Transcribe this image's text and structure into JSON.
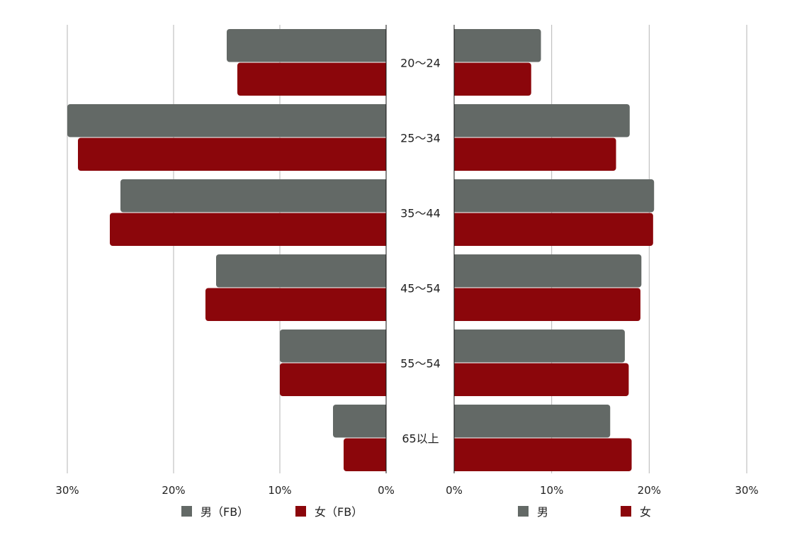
{
  "chart_data": {
    "type": "bar",
    "orientation": "horizontal",
    "layout": "butterfly",
    "categories": [
      "20〜24",
      "25〜34",
      "35〜44",
      "45〜54",
      "55〜54",
      "65以上"
    ],
    "colors": {
      "male": "#636966",
      "female": "#8b060b"
    },
    "grid": true,
    "legend_position": "bottom",
    "panels": [
      {
        "side": "left",
        "direction": "reversed",
        "xlim": [
          0,
          30
        ],
        "ticks": [
          "0%",
          "10%",
          "20%",
          "30%"
        ],
        "series": [
          {
            "name": "男（FB）",
            "color": "#636966",
            "values": [
              15,
              30,
              25,
              16,
              10,
              5
            ]
          },
          {
            "name": "女（FB）",
            "color": "#8b060b",
            "values": [
              14,
              29,
              26,
              17,
              10,
              4
            ]
          }
        ]
      },
      {
        "side": "right",
        "direction": "normal",
        "xlim": [
          0,
          30
        ],
        "ticks": [
          "0%",
          "10%",
          "20%",
          "30%"
        ],
        "series": [
          {
            "name": "男",
            "color": "#636966",
            "values": [
              8.9,
              18,
              20.5,
              19.2,
              17.5,
              16
            ]
          },
          {
            "name": "女",
            "color": "#8b060b",
            "values": [
              7.9,
              16.6,
              20.4,
              19.1,
              17.9,
              18.2
            ]
          }
        ]
      }
    ]
  }
}
